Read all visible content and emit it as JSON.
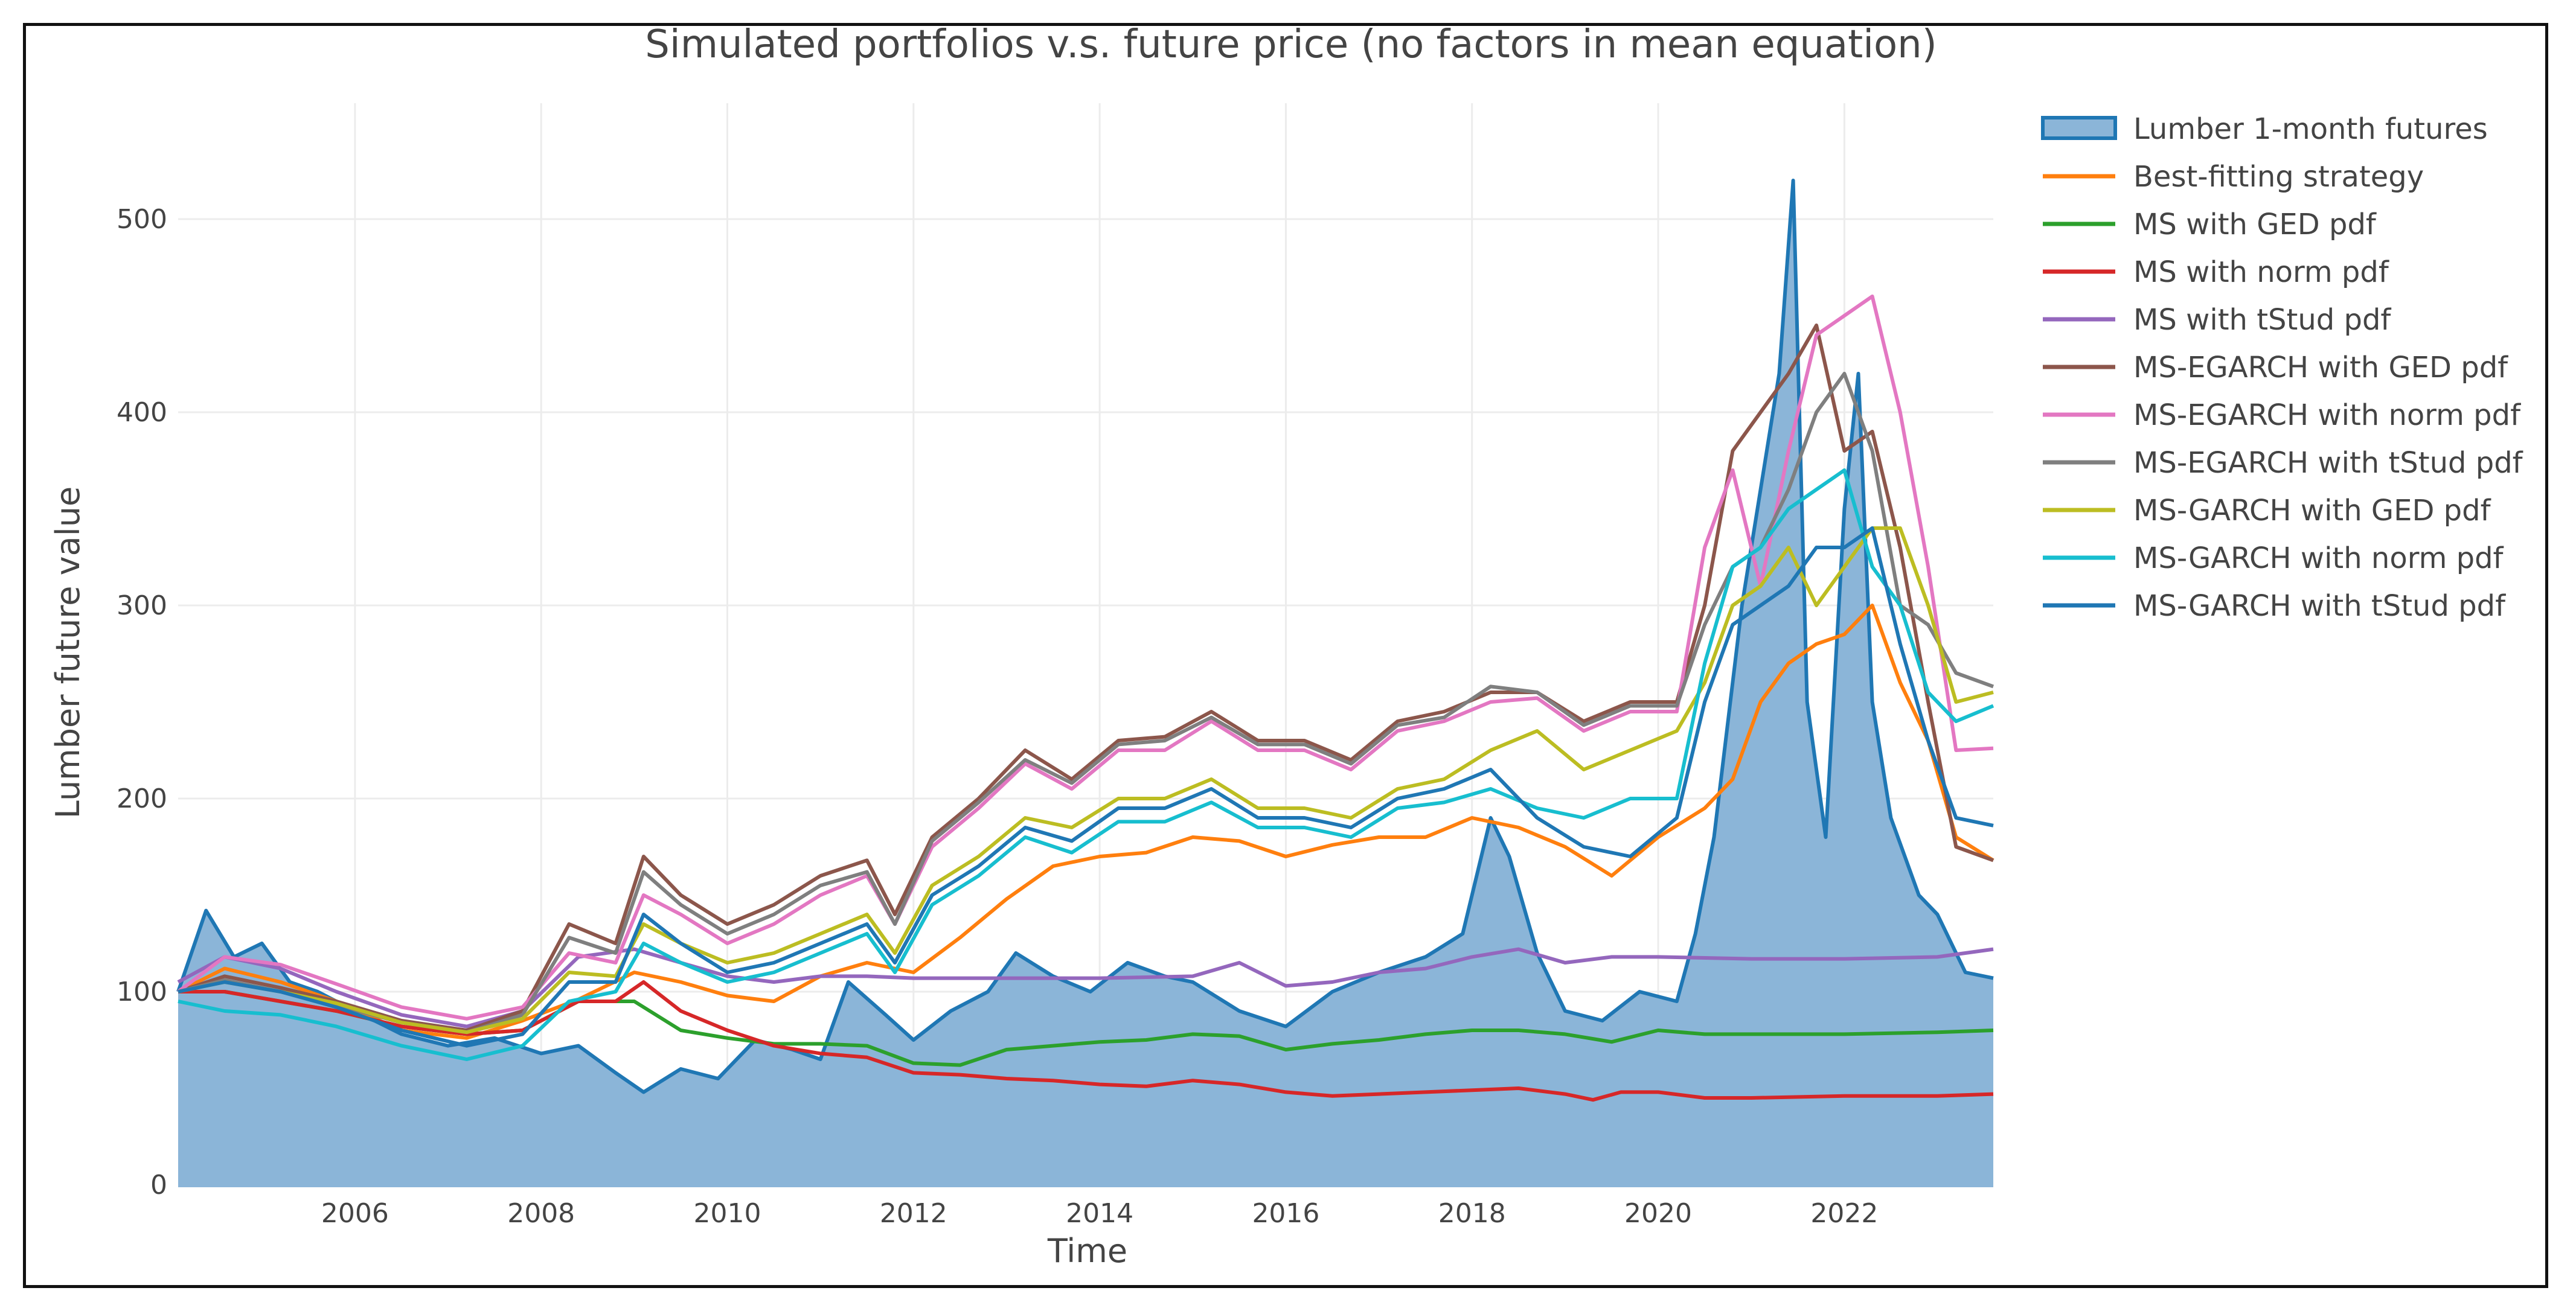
{
  "chart_data": {
    "type": "line",
    "title": "Simulated portfolios v.s. future price (no factors in mean equation)",
    "xlabel": "Time",
    "ylabel": "Lumber future value",
    "xlim": [
      2004.1,
      2023.6
    ],
    "ylim": [
      0,
      560
    ],
    "x_ticks": [
      2006,
      2008,
      2010,
      2012,
      2014,
      2016,
      2018,
      2020,
      2022
    ],
    "x_tick_labels": [
      "2006",
      "2008",
      "2010",
      "2012",
      "2014",
      "2016",
      "2018",
      "2020",
      "2022"
    ],
    "y_ticks": [
      0,
      100,
      200,
      300,
      400,
      500
    ],
    "y_tick_labels": [
      "0",
      "100",
      "200",
      "300",
      "400",
      "500"
    ],
    "grid": true,
    "legend_position": "right",
    "series": [
      {
        "name": "Lumber 1-month futures",
        "kind": "area",
        "color": "#1f77b4",
        "fill": "#8bb5d8",
        "x": [
          2004.1,
          2004.4,
          2004.7,
          2005.0,
          2005.3,
          2005.6,
          2006.0,
          2006.5,
          2007.0,
          2007.5,
          2008.0,
          2008.4,
          2008.8,
          2009.1,
          2009.5,
          2009.9,
          2010.3,
          2010.7,
          2011.0,
          2011.3,
          2011.7,
          2012.0,
          2012.4,
          2012.8,
          2013.1,
          2013.5,
          2013.9,
          2014.3,
          2014.7,
          2015.0,
          2015.5,
          2016.0,
          2016.5,
          2017.0,
          2017.5,
          2017.9,
          2018.2,
          2018.4,
          2018.7,
          2019.0,
          2019.4,
          2019.8,
          2020.2,
          2020.4,
          2020.6,
          2020.9,
          2021.1,
          2021.3,
          2021.45,
          2021.6,
          2021.8,
          2022.0,
          2022.15,
          2022.3,
          2022.5,
          2022.8,
          2023.0,
          2023.3,
          2023.6
        ],
        "y": [
          100,
          142,
          118,
          125,
          105,
          100,
          90,
          78,
          72,
          76,
          68,
          72,
          58,
          48,
          60,
          55,
          75,
          70,
          65,
          105,
          88,
          75,
          90,
          100,
          120,
          108,
          100,
          115,
          108,
          105,
          90,
          82,
          100,
          110,
          118,
          130,
          190,
          170,
          120,
          90,
          85,
          100,
          95,
          130,
          180,
          300,
          360,
          420,
          520,
          250,
          180,
          350,
          420,
          250,
          190,
          150,
          140,
          110,
          107
        ]
      },
      {
        "name": "Best-fitting strategy",
        "kind": "line",
        "color": "#ff7f0e",
        "x": [
          2004.1,
          2004.6,
          2005.2,
          2005.8,
          2006.5,
          2007.2,
          2007.8,
          2008.4,
          2009.0,
          2009.5,
          2010.0,
          2010.5,
          2011.0,
          2011.5,
          2012.0,
          2012.5,
          2013.0,
          2013.5,
          2014.0,
          2014.5,
          2015.0,
          2015.5,
          2016.0,
          2016.5,
          2017.0,
          2017.5,
          2018.0,
          2018.5,
          2019.0,
          2019.5,
          2020.0,
          2020.5,
          2020.8,
          2021.1,
          2021.4,
          2021.7,
          2022.0,
          2022.3,
          2022.6,
          2022.9,
          2023.2,
          2023.6
        ],
        "y": [
          100,
          112,
          105,
          95,
          80,
          76,
          85,
          96,
          110,
          105,
          98,
          95,
          108,
          115,
          110,
          128,
          148,
          165,
          170,
          172,
          180,
          178,
          170,
          176,
          180,
          180,
          190,
          185,
          175,
          160,
          180,
          195,
          210,
          250,
          270,
          280,
          285,
          300,
          260,
          230,
          180,
          168
        ]
      },
      {
        "name": "MS with GED pdf",
        "kind": "line",
        "color": "#2ca02c",
        "x": [
          2004.1,
          2004.6,
          2005.2,
          2005.8,
          2006.5,
          2007.2,
          2007.8,
          2008.4,
          2009.0,
          2009.5,
          2010.0,
          2010.5,
          2011.0,
          2011.5,
          2012.0,
          2012.5,
          2013.0,
          2013.5,
          2014.0,
          2014.5,
          2015.0,
          2015.5,
          2016.0,
          2016.5,
          2017.0,
          2017.5,
          2018.0,
          2018.5,
          2019.0,
          2019.5,
          2020.0,
          2020.5,
          2021.0,
          2022.0,
          2023.0,
          2023.6
        ],
        "y": [
          100,
          100,
          95,
          90,
          82,
          78,
          80,
          95,
          95,
          80,
          76,
          73,
          73,
          72,
          63,
          62,
          70,
          72,
          74,
          75,
          78,
          77,
          70,
          73,
          75,
          78,
          80,
          80,
          78,
          74,
          80,
          78,
          78,
          78,
          79,
          80
        ]
      },
      {
        "name": "MS with norm pdf",
        "kind": "line",
        "color": "#d62728",
        "x": [
          2004.1,
          2004.6,
          2005.2,
          2005.8,
          2006.5,
          2007.2,
          2007.8,
          2008.4,
          2008.8,
          2009.1,
          2009.5,
          2010.0,
          2010.5,
          2011.0,
          2011.5,
          2012.0,
          2012.5,
          2013.0,
          2013.5,
          2014.0,
          2014.5,
          2015.0,
          2015.5,
          2016.0,
          2016.5,
          2017.0,
          2017.5,
          2018.0,
          2018.5,
          2019.0,
          2019.3,
          2019.6,
          2020.0,
          2020.5,
          2021.0,
          2022.0,
          2023.0,
          2023.6
        ],
        "y": [
          100,
          100,
          95,
          90,
          82,
          78,
          80,
          95,
          95,
          105,
          90,
          80,
          72,
          68,
          66,
          58,
          57,
          55,
          54,
          52,
          51,
          54,
          52,
          48,
          46,
          47,
          48,
          49,
          50,
          47,
          44,
          48,
          48,
          45,
          45,
          46,
          46,
          47
        ]
      },
      {
        "name": "MS with tStud pdf",
        "kind": "line",
        "color": "#9467bd",
        "x": [
          2004.1,
          2004.6,
          2005.2,
          2005.8,
          2006.5,
          2007.2,
          2007.8,
          2008.4,
          2009.0,
          2009.5,
          2010.0,
          2010.5,
          2011.0,
          2011.5,
          2012.0,
          2013.0,
          2014.0,
          2015.0,
          2015.5,
          2016.0,
          2016.5,
          2017.0,
          2017.5,
          2018.0,
          2018.5,
          2019.0,
          2019.5,
          2020.0,
          2021.0,
          2022.0,
          2023.0,
          2023.6
        ],
        "y": [
          105,
          118,
          112,
          100,
          88,
          82,
          90,
          118,
          122,
          115,
          108,
          105,
          108,
          108,
          107,
          107,
          107,
          108,
          115,
          103,
          105,
          110,
          112,
          118,
          122,
          115,
          118,
          118,
          117,
          117,
          118,
          122
        ]
      },
      {
        "name": "MS-EGARCH with GED pdf",
        "kind": "line",
        "color": "#8c564b",
        "x": [
          2004.1,
          2004.6,
          2005.2,
          2005.8,
          2006.5,
          2007.2,
          2007.8,
          2008.3,
          2008.8,
          2009.1,
          2009.5,
          2010.0,
          2010.5,
          2011.0,
          2011.5,
          2011.8,
          2012.2,
          2012.7,
          2013.2,
          2013.7,
          2014.2,
          2014.7,
          2015.2,
          2015.7,
          2016.2,
          2016.7,
          2017.2,
          2017.7,
          2018.2,
          2018.7,
          2019.2,
          2019.7,
          2020.2,
          2020.5,
          2020.8,
          2021.1,
          2021.4,
          2021.7,
          2022.0,
          2022.3,
          2022.6,
          2022.9,
          2023.2,
          2023.6
        ],
        "y": [
          100,
          108,
          102,
          95,
          85,
          80,
          90,
          135,
          125,
          170,
          150,
          135,
          145,
          160,
          168,
          140,
          180,
          200,
          225,
          210,
          230,
          232,
          245,
          230,
          230,
          220,
          240,
          245,
          255,
          255,
          240,
          250,
          250,
          300,
          380,
          400,
          420,
          445,
          380,
          390,
          330,
          250,
          175,
          168
        ]
      },
      {
        "name": "MS-EGARCH with norm pdf",
        "kind": "line",
        "color": "#e377c2",
        "x": [
          2004.1,
          2004.6,
          2005.2,
          2005.8,
          2006.5,
          2007.2,
          2007.8,
          2008.3,
          2008.8,
          2009.1,
          2009.5,
          2010.0,
          2010.5,
          2011.0,
          2011.5,
          2011.8,
          2012.2,
          2012.7,
          2013.2,
          2013.7,
          2014.2,
          2014.7,
          2015.2,
          2015.7,
          2016.2,
          2016.7,
          2017.2,
          2017.7,
          2018.2,
          2018.7,
          2019.2,
          2019.7,
          2020.2,
          2020.5,
          2020.8,
          2021.1,
          2021.4,
          2021.7,
          2022.0,
          2022.3,
          2022.6,
          2022.9,
          2023.2,
          2023.6
        ],
        "y": [
          100,
          118,
          114,
          104,
          92,
          86,
          92,
          120,
          115,
          150,
          140,
          125,
          135,
          150,
          160,
          135,
          175,
          195,
          218,
          205,
          225,
          225,
          240,
          225,
          225,
          215,
          235,
          240,
          250,
          252,
          235,
          245,
          245,
          330,
          370,
          310,
          380,
          440,
          450,
          460,
          400,
          320,
          225,
          226
        ]
      },
      {
        "name": "MS-EGARCH with tStud pdf",
        "kind": "line",
        "color": "#7f7f7f",
        "x": [
          2004.1,
          2004.6,
          2005.2,
          2005.8,
          2006.5,
          2007.2,
          2007.8,
          2008.3,
          2008.8,
          2009.1,
          2009.5,
          2010.0,
          2010.5,
          2011.0,
          2011.5,
          2011.8,
          2012.2,
          2012.7,
          2013.2,
          2013.7,
          2014.2,
          2014.7,
          2015.2,
          2015.7,
          2016.2,
          2016.7,
          2017.2,
          2017.7,
          2018.2,
          2018.7,
          2019.2,
          2019.7,
          2020.2,
          2020.5,
          2020.8,
          2021.1,
          2021.4,
          2021.7,
          2022.0,
          2022.3,
          2022.6,
          2022.9,
          2023.2,
          2023.6
        ],
        "y": [
          100,
          106,
          100,
          93,
          84,
          79,
          88,
          128,
          120,
          162,
          145,
          130,
          140,
          155,
          162,
          135,
          178,
          198,
          220,
          208,
          228,
          230,
          242,
          228,
          228,
          218,
          238,
          242,
          258,
          255,
          238,
          248,
          248,
          290,
          320,
          330,
          360,
          400,
          420,
          380,
          300,
          290,
          265,
          258
        ]
      },
      {
        "name": "MS-GARCH with GED pdf",
        "kind": "line",
        "color": "#bcbd22",
        "x": [
          2004.1,
          2004.6,
          2005.2,
          2005.8,
          2006.5,
          2007.2,
          2007.8,
          2008.3,
          2008.8,
          2009.1,
          2009.5,
          2010.0,
          2010.5,
          2011.0,
          2011.5,
          2011.8,
          2012.2,
          2012.7,
          2013.2,
          2013.7,
          2014.2,
          2014.7,
          2015.2,
          2015.7,
          2016.2,
          2016.7,
          2017.2,
          2017.7,
          2018.2,
          2018.7,
          2019.2,
          2019.7,
          2020.2,
          2020.5,
          2020.8,
          2021.1,
          2021.4,
          2021.7,
          2022.0,
          2022.3,
          2022.6,
          2022.9,
          2023.2,
          2023.6
        ],
        "y": [
          100,
          105,
          100,
          94,
          84,
          79,
          86,
          110,
          108,
          135,
          125,
          115,
          120,
          130,
          140,
          120,
          155,
          170,
          190,
          185,
          200,
          200,
          210,
          195,
          195,
          190,
          205,
          210,
          225,
          235,
          215,
          225,
          235,
          260,
          300,
          310,
          330,
          300,
          320,
          340,
          340,
          300,
          250,
          255
        ]
      },
      {
        "name": "MS-GARCH with norm pdf",
        "kind": "line",
        "color": "#17becf",
        "x": [
          2004.1,
          2004.6,
          2005.2,
          2005.8,
          2006.5,
          2007.2,
          2007.8,
          2008.3,
          2008.8,
          2009.1,
          2009.5,
          2010.0,
          2010.5,
          2011.0,
          2011.5,
          2011.8,
          2012.2,
          2012.7,
          2013.2,
          2013.7,
          2014.2,
          2014.7,
          2015.2,
          2015.7,
          2016.2,
          2016.7,
          2017.2,
          2017.7,
          2018.2,
          2018.7,
          2019.2,
          2019.7,
          2020.2,
          2020.5,
          2020.8,
          2021.1,
          2021.4,
          2021.7,
          2022.0,
          2022.3,
          2022.6,
          2022.9,
          2023.2,
          2023.6
        ],
        "y": [
          95,
          90,
          88,
          82,
          72,
          65,
          72,
          95,
          100,
          125,
          115,
          105,
          110,
          120,
          130,
          110,
          145,
          160,
          180,
          172,
          188,
          188,
          198,
          185,
          185,
          180,
          195,
          198,
          205,
          195,
          190,
          200,
          200,
          270,
          320,
          330,
          350,
          360,
          370,
          320,
          300,
          255,
          240,
          248
        ]
      },
      {
        "name": "MS-GARCH with tStud pdf",
        "kind": "line",
        "color": "#1f77b4",
        "x": [
          2004.1,
          2004.6,
          2005.2,
          2005.8,
          2006.5,
          2007.2,
          2007.8,
          2008.3,
          2008.8,
          2009.1,
          2009.5,
          2010.0,
          2010.5,
          2011.0,
          2011.5,
          2011.8,
          2012.2,
          2012.7,
          2013.2,
          2013.7,
          2014.2,
          2014.7,
          2015.2,
          2015.7,
          2016.2,
          2016.7,
          2017.2,
          2017.7,
          2018.2,
          2018.7,
          2019.2,
          2019.7,
          2020.2,
          2020.5,
          2020.8,
          2021.1,
          2021.4,
          2021.7,
          2022.0,
          2022.3,
          2022.6,
          2022.9,
          2023.2,
          2023.6
        ],
        "y": [
          100,
          105,
          100,
          92,
          80,
          72,
          78,
          105,
          105,
          140,
          125,
          110,
          115,
          125,
          135,
          115,
          150,
          165,
          185,
          178,
          195,
          195,
          205,
          190,
          190,
          185,
          200,
          205,
          215,
          190,
          175,
          170,
          190,
          250,
          290,
          300,
          310,
          330,
          330,
          340,
          280,
          230,
          190,
          186
        ]
      }
    ]
  }
}
